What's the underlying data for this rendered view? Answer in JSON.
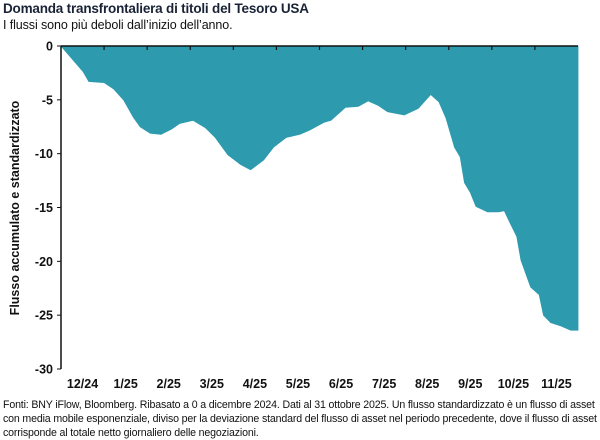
{
  "title": "Domanda transfrontaliera di titoli del Tesoro USA",
  "subtitle": "I flussi sono più deboli dall’inizio dell’anno.",
  "footnote": "Fonti: BNY iFlow, Bloomberg. Ribasato a 0 a dicembre 2024. Dati al 31 ottobre 2025. Un flusso standardizzato è un flusso di asset con media mobile esponenziale, diviso per la deviazione standard del flusso di asset nel periodo precedente, dove il flusso di asset corrisponde al totale netto giornaliero delle negoziazioni.",
  "chart_data": {
    "type": "area",
    "title": "Domanda transfrontaliera di titoli del Tesoro USA",
    "xlabel": "",
    "ylabel": "Flusso accumulato e standardizzato",
    "ylim": [
      -30,
      0
    ],
    "yticks": [
      0,
      -5,
      -10,
      -15,
      -20,
      -25,
      -30
    ],
    "xticklabels": [
      "12/24",
      "1/25",
      "2/25",
      "3/25",
      "4/25",
      "5/25",
      "6/25",
      "7/25",
      "8/25",
      "9/25",
      "10/25",
      "11/25"
    ],
    "xlim": [
      "2024-12-01",
      "2025-12-01"
    ],
    "grid": false,
    "legend": "none",
    "fill_color": "#2e9aae",
    "fill_direction": "from 0 down to series",
    "series": [
      {
        "x": [
          "2024-12-01",
          "2024-12-17",
          "2024-12-21",
          "2025-01-01",
          "2025-01-08",
          "2025-01-15",
          "2025-01-22",
          "2025-01-27",
          "2025-02-03",
          "2025-02-10",
          "2025-02-17",
          "2025-02-22",
          "2025-03-03",
          "2025-03-12",
          "2025-03-19",
          "2025-03-28",
          "2025-04-06",
          "2025-04-13",
          "2025-04-22",
          "2025-04-29",
          "2025-05-08",
          "2025-05-18",
          "2025-05-25",
          "2025-06-04",
          "2025-06-09",
          "2025-06-19",
          "2025-06-28",
          "2025-07-05",
          "2025-07-12",
          "2025-07-19",
          "2025-07-31",
          "2025-08-10",
          "2025-08-19",
          "2025-08-25",
          "2025-08-30",
          "2025-09-05",
          "2025-09-09",
          "2025-09-12",
          "2025-09-16",
          "2025-09-20",
          "2025-09-28",
          "2025-10-06",
          "2025-10-10",
          "2025-10-14",
          "2025-10-19",
          "2025-10-22",
          "2025-10-29",
          "2025-11-04",
          "2025-11-07",
          "2025-11-12",
          "2025-11-19",
          "2025-11-26"
        ],
        "y": [
          0,
          -2.4,
          -3.3,
          -3.4,
          -4.0,
          -5.0,
          -6.6,
          -7.5,
          -8.1,
          -8.2,
          -7.7,
          -7.2,
          -6.9,
          -7.6,
          -8.5,
          -10.1,
          -11.0,
          -11.5,
          -10.6,
          -9.4,
          -8.5,
          -8.2,
          -7.8,
          -7.1,
          -6.9,
          -5.7,
          -5.6,
          -5.1,
          -5.5,
          -6.1,
          -6.4,
          -5.8,
          -4.5,
          -5.2,
          -6.7,
          -9.4,
          -10.3,
          -12.7,
          -13.6,
          -14.9,
          -15.4,
          -15.4,
          -15.3,
          -16.4,
          -17.7,
          -19.9,
          -22.4,
          -23.1,
          -25.0,
          -25.7,
          -26.0,
          -26.4
        ]
      }
    ]
  }
}
